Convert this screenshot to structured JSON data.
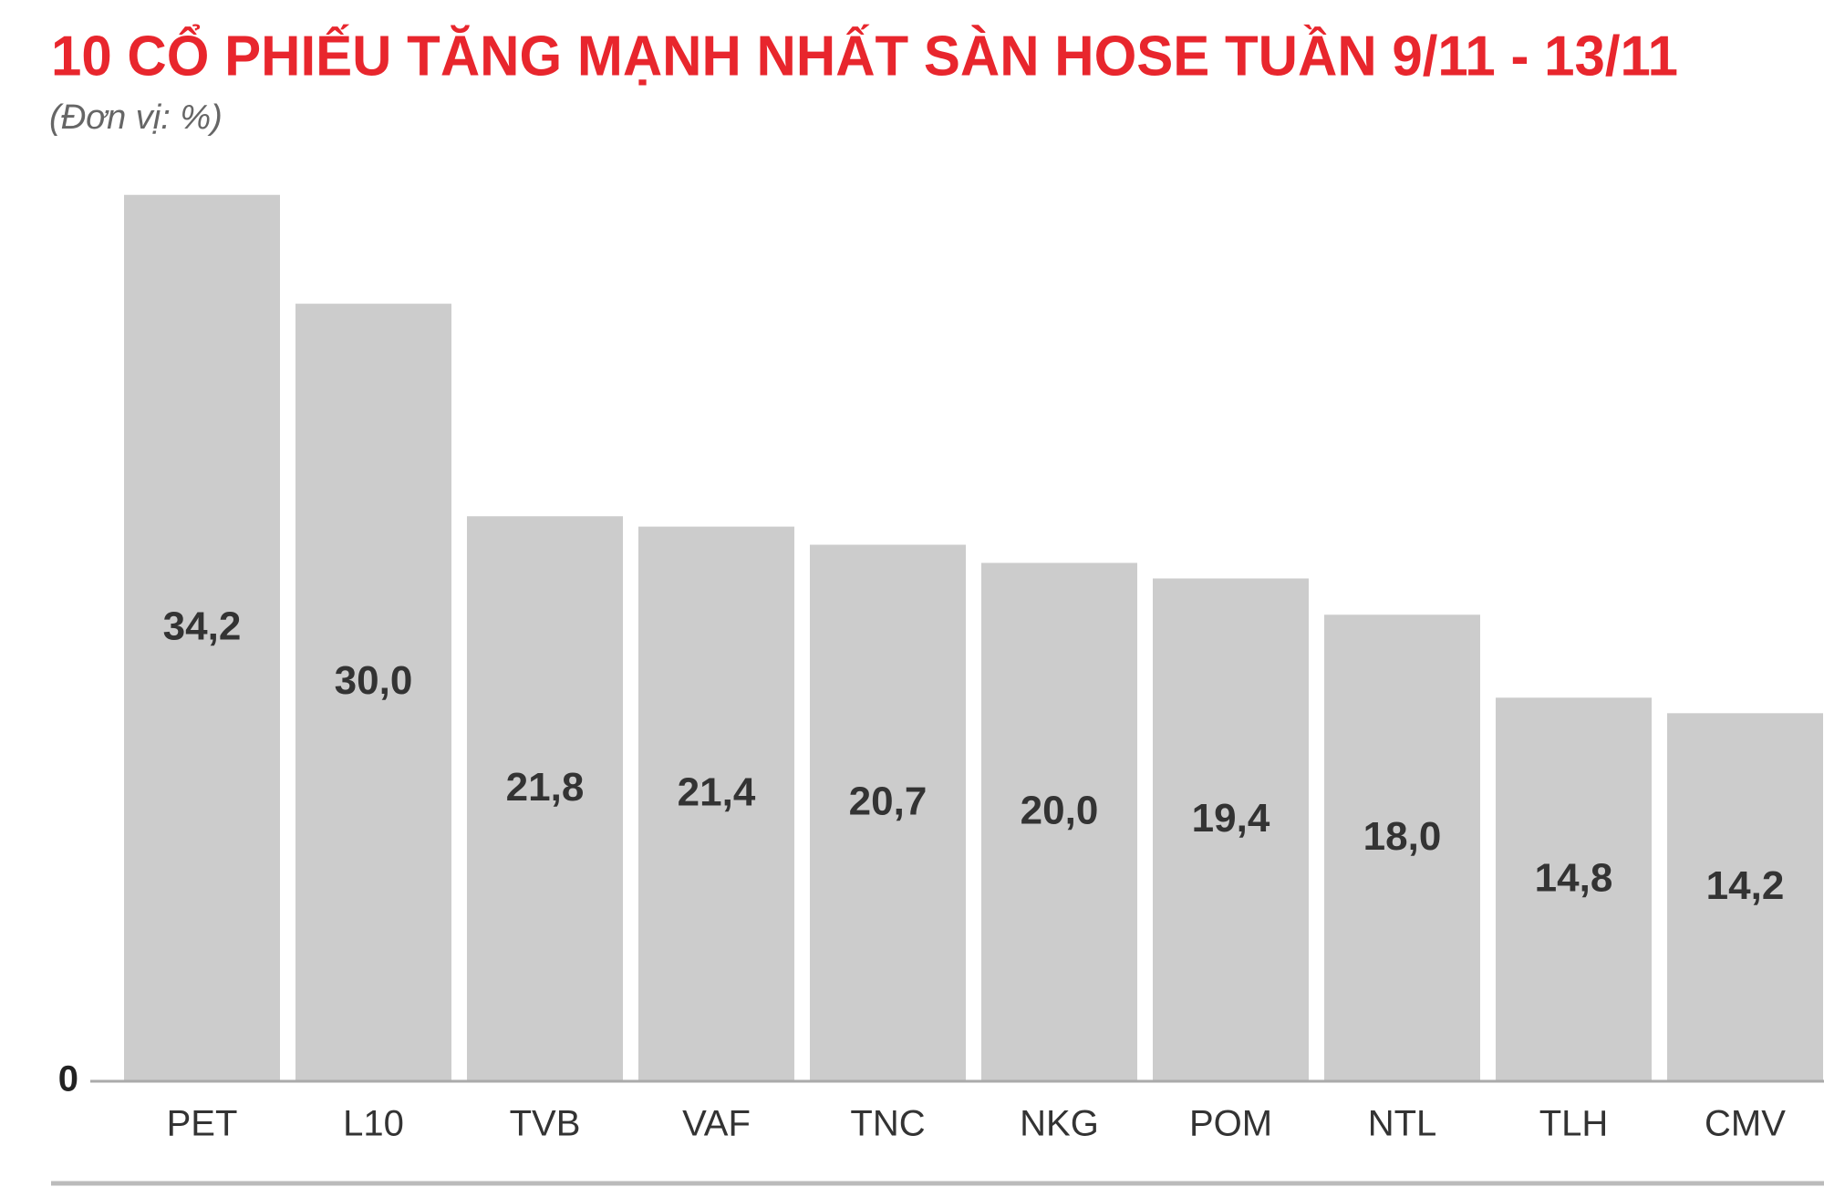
{
  "chart_data": {
    "type": "bar",
    "title": "10 CỔ PHIẾU TĂNG MẠNH NHẤT SÀN HOSE TUẦN 9/11 - 13/11",
    "subtitle": "(Đơn vị: %)",
    "categories": [
      "PET",
      "L10",
      "TVB",
      "VAF",
      "TNC",
      "NKG",
      "POM",
      "NTL",
      "TLH",
      "CMV"
    ],
    "values": [
      34.2,
      30.0,
      21.8,
      21.4,
      20.7,
      20.0,
      19.4,
      18.0,
      14.8,
      14.2
    ],
    "value_labels": [
      "34,2",
      "30,0",
      "21,8",
      "21,4",
      "20,7",
      "20,0",
      "19,4",
      "18,0",
      "14,8",
      "14,2"
    ],
    "color": "#cccccc",
    "ylim": [
      0,
      35
    ],
    "yticks": [
      0
    ],
    "grid": false
  }
}
